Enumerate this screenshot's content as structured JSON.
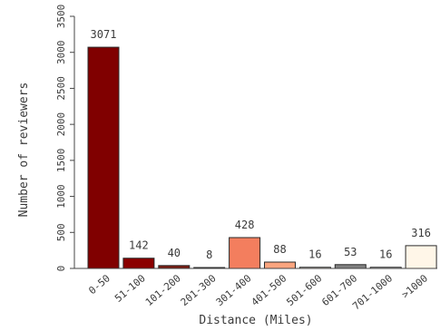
{
  "chart_data": {
    "type": "bar",
    "categories": [
      "0-50",
      "51-100",
      "101-200",
      "201-300",
      "301-400",
      "401-500",
      "501-600",
      "601-700",
      "701-1000",
      ">1000"
    ],
    "values": [
      3071,
      142,
      40,
      8,
      428,
      88,
      16,
      53,
      16,
      316
    ],
    "data_labels": [
      "3071",
      "142",
      "40",
      "8",
      "428",
      "88",
      "16",
      "53",
      "16",
      "316"
    ],
    "colors": [
      "#800000",
      "#8b0000",
      "#7a1a10",
      "#6a1010",
      "#f37e5e",
      "#fba57f",
      "#fff3e8",
      "#808080",
      "#eeeeee",
      "#fff6e8"
    ],
    "xlabel": "Distance (Miles)",
    "ylabel": "Number of reviewers",
    "ylim": [
      0,
      3500
    ],
    "yticks": [
      0,
      500,
      1000,
      1500,
      2000,
      2500,
      3000,
      3500
    ],
    "ytick_labels": [
      "0",
      "500",
      "1000",
      "1500",
      "2000",
      "2500",
      "3000",
      "3500"
    ],
    "grid": false,
    "legend": false
  }
}
